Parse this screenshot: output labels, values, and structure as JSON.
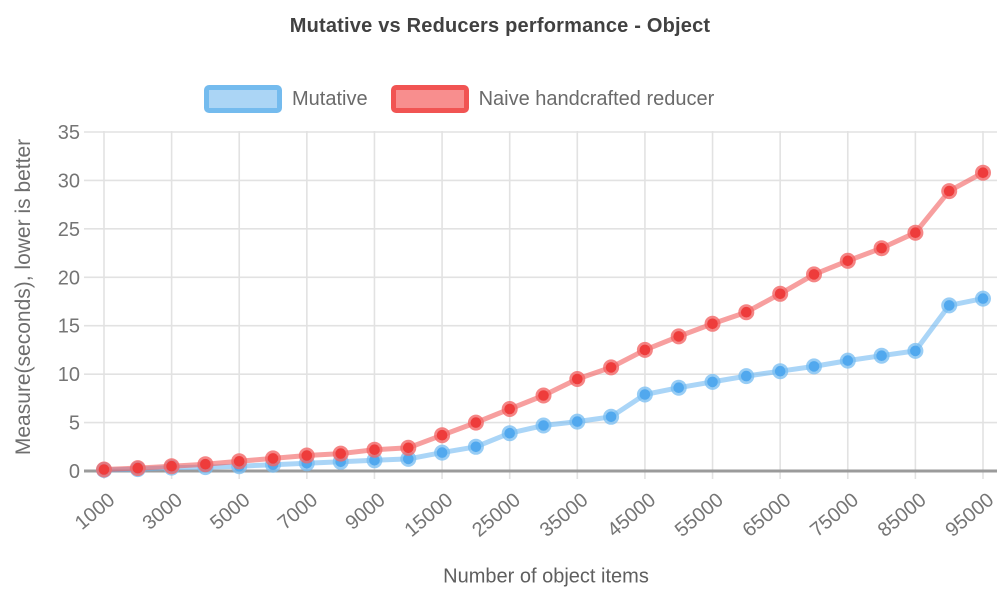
{
  "title": "Mutative vs Reducers performance - Object",
  "chart_data": {
    "type": "line",
    "title": "Mutative vs Reducers performance - Object",
    "xlabel": "Number of object items",
    "ylabel": "Measure(seconds), lower is better",
    "x": [
      1000,
      2000,
      3000,
      4000,
      5000,
      6000,
      7000,
      8000,
      9000,
      10000,
      15000,
      20000,
      25000,
      30000,
      35000,
      40000,
      45000,
      50000,
      55000,
      60000,
      65000,
      70000,
      75000,
      80000,
      85000,
      90000,
      95000
    ],
    "x_tick_labels": [
      "1000",
      "3000",
      "5000",
      "7000",
      "9000",
      "15000",
      "25000",
      "35000",
      "45000",
      "55000",
      "65000",
      "75000",
      "85000",
      "95000"
    ],
    "y_ticks": [
      0,
      5,
      10,
      15,
      20,
      25,
      30,
      35
    ],
    "ylim": [
      0,
      35
    ],
    "grid": true,
    "legend_position": "top",
    "series": [
      {
        "name": "Mutative",
        "values": [
          0.1,
          0.2,
          0.35,
          0.4,
          0.5,
          0.65,
          0.8,
          0.95,
          1.1,
          1.25,
          1.9,
          2.5,
          3.9,
          4.7,
          5.1,
          5.6,
          7.9,
          8.6,
          9.2,
          9.8,
          10.3,
          10.8,
          11.4,
          11.9,
          12.4,
          17.1,
          17.8
        ],
        "line_color": "rgba(101,178,240,0.55)",
        "ring_color": "rgba(118,188,242,0.75)",
        "point_color": "#51a8ee",
        "legend_fill": "#abd5f5",
        "legend_border": "#74bbee"
      },
      {
        "name": "Naive handcrafted reducer",
        "values": [
          0.15,
          0.3,
          0.5,
          0.7,
          1.0,
          1.3,
          1.6,
          1.8,
          2.2,
          2.4,
          3.7,
          5.0,
          6.4,
          7.8,
          9.5,
          10.7,
          12.5,
          13.9,
          15.2,
          16.4,
          18.3,
          20.3,
          21.7,
          23.0,
          24.6,
          28.9,
          30.8
        ],
        "line_color": "rgba(242,95,95,0.6)",
        "ring_color": "rgba(243,103,103,0.8)",
        "point_color": "#ee3c3b",
        "legend_fill": "#f88e8e",
        "legend_border": "#f15453"
      }
    ],
    "colors": {
      "grid_line": "#e2e2e2",
      "zero_line": "#9b9b9b",
      "tick_label": "#757575"
    }
  }
}
